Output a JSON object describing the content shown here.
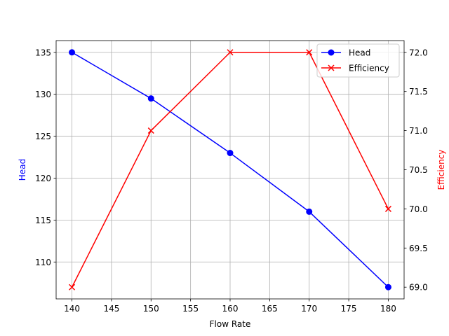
{
  "chart_data": {
    "type": "line",
    "x": [
      140,
      150,
      160,
      170,
      180
    ],
    "xlabel": "Flow Rate",
    "xlim": [
      138,
      182
    ],
    "xticks": [
      140,
      145,
      150,
      155,
      160,
      165,
      170,
      175,
      180
    ],
    "grid": true,
    "legend_position": "top-right",
    "series": [
      {
        "name": "Head",
        "axis": "left",
        "values": [
          135,
          129.5,
          123,
          116,
          107
        ],
        "color": "#0000ff",
        "marker": "circle"
      },
      {
        "name": "Efficiency",
        "axis": "right",
        "values": [
          69.0,
          71.0,
          72.0,
          72.0,
          70.0
        ],
        "color": "#ff0000",
        "marker": "x"
      }
    ],
    "y_left": {
      "label": "Head",
      "color": "#0000ff",
      "ylim": [
        105.6,
        136.4
      ],
      "ticks": [
        110,
        115,
        120,
        125,
        130,
        135
      ]
    },
    "y_right": {
      "label": "Efficiency",
      "color": "#ff0000",
      "ylim": [
        68.85,
        72.15
      ],
      "ticks": [
        "69.0",
        "69.5",
        "70.0",
        "70.5",
        "71.0",
        "71.5",
        "72.0"
      ]
    }
  }
}
